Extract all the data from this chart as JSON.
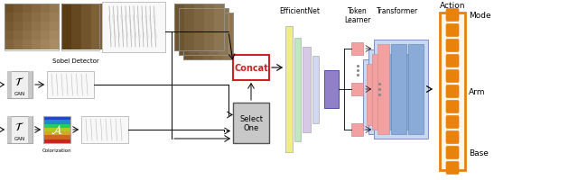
{
  "bg_color": "#ffffff",
  "orange": "#E8820C",
  "pink": "#F2A0A0",
  "blue_light": "#C8D8F0",
  "blue_mid": "#8AAAD8",
  "yellow": "#F0EE80",
  "green_light": "#C0E8C0",
  "purple": "#9080C8",
  "lavender": "#D8C8E8",
  "gray_gan": "#C8C8C8",
  "gray_select": "#C0C0C0",
  "concat_border": "#CC2222",
  "action_labels": [
    "Mode",
    "Arm",
    "Base"
  ],
  "sobel_label": "Sobel Detector",
  "gan_label": "GAN",
  "colorization_label": "Colorization",
  "concat_label": "Concat",
  "select_label": "Select\nOne",
  "efficientnet_label": "EfficientNet",
  "token_learner_label": "Token\nLearner",
  "transformer_label": "Transformer",
  "action_label": "Action",
  "num_action_squares": 11
}
